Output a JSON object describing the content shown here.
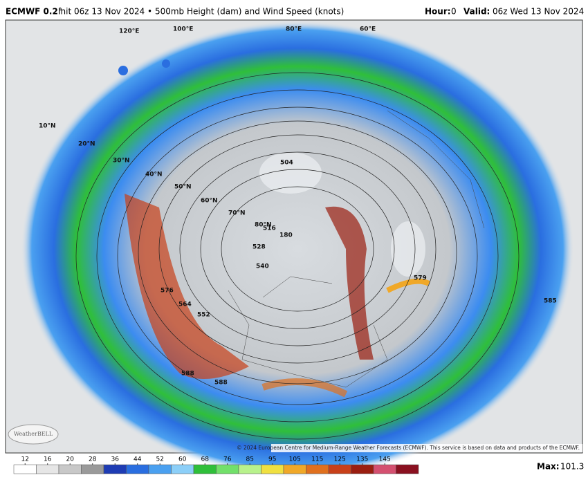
{
  "header": {
    "model": "ECMWF 0.2°",
    "description": "Init 06z 13 Nov 2024 • 500mb Height (dam) and Wind Speed (knots)",
    "hour_label": "Hour:",
    "hour": "0",
    "valid_label": "Valid:",
    "valid": "06z Wed 13 Nov 2024"
  },
  "map": {
    "latitude_labels": [
      "10°N",
      "20°N",
      "30°N",
      "40°N",
      "50°N",
      "60°N",
      "70°N",
      "80°N"
    ],
    "longitude_labels": [
      "120°E",
      "100°E",
      "80°E",
      "60°E"
    ],
    "contour_labels": [
      "588",
      "576",
      "564",
      "552",
      "540",
      "528",
      "516",
      "504",
      "180",
      "579",
      "585",
      "588"
    ],
    "copyright": "© 2024 European Centre for Medium-Range Weather Forecasts (ECMWF). This service is based on data and products of the ECMWF.",
    "logo": "WeatherBELL"
  },
  "legend": {
    "ticks": [
      12,
      16,
      20,
      28,
      36,
      44,
      52,
      60,
      68,
      76,
      85,
      95,
      105,
      115,
      125,
      135,
      145
    ],
    "colors": [
      "#ffffff",
      "#e6e6e6",
      "#c8c8c8",
      "#9a9a9a",
      "#1e3cb4",
      "#2a6ee0",
      "#4aa0f0",
      "#8ccff8",
      "#2fbf3a",
      "#72e06a",
      "#b8f28c",
      "#f0e040",
      "#f0a828",
      "#e0701e",
      "#c8401a",
      "#9a1e10",
      "#d45070",
      "#8a1020"
    ],
    "max_label": "Max:",
    "max": 101.3
  }
}
